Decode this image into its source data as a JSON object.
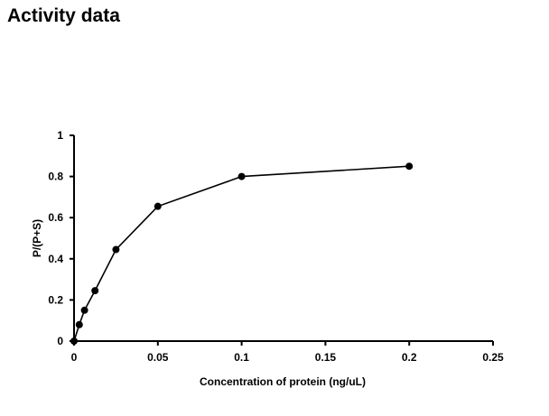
{
  "page": {
    "title": "Activity data"
  },
  "chart_data": {
    "type": "line",
    "title": "",
    "xlabel": "Concentration of protein (ng/uL)",
    "ylabel": "P/(P+S)",
    "xlim": [
      0,
      0.25
    ],
    "ylim": [
      0,
      1
    ],
    "x_ticks": [
      "0",
      "0.05",
      "0.1",
      "0.15",
      "0.2",
      "0.25"
    ],
    "y_ticks": [
      "0",
      "0.2",
      "0.4",
      "0.6",
      "0.8",
      "1"
    ],
    "grid": false,
    "legend": "none",
    "series": [
      {
        "color": "#000000",
        "marker": "circle",
        "x": [
          0,
          0.003125,
          0.00625,
          0.0125,
          0.025,
          0.05,
          0.1,
          0.2
        ],
        "y": [
          0,
          0.08,
          0.15,
          0.245,
          0.445,
          0.655,
          0.8,
          0.85
        ]
      }
    ]
  }
}
